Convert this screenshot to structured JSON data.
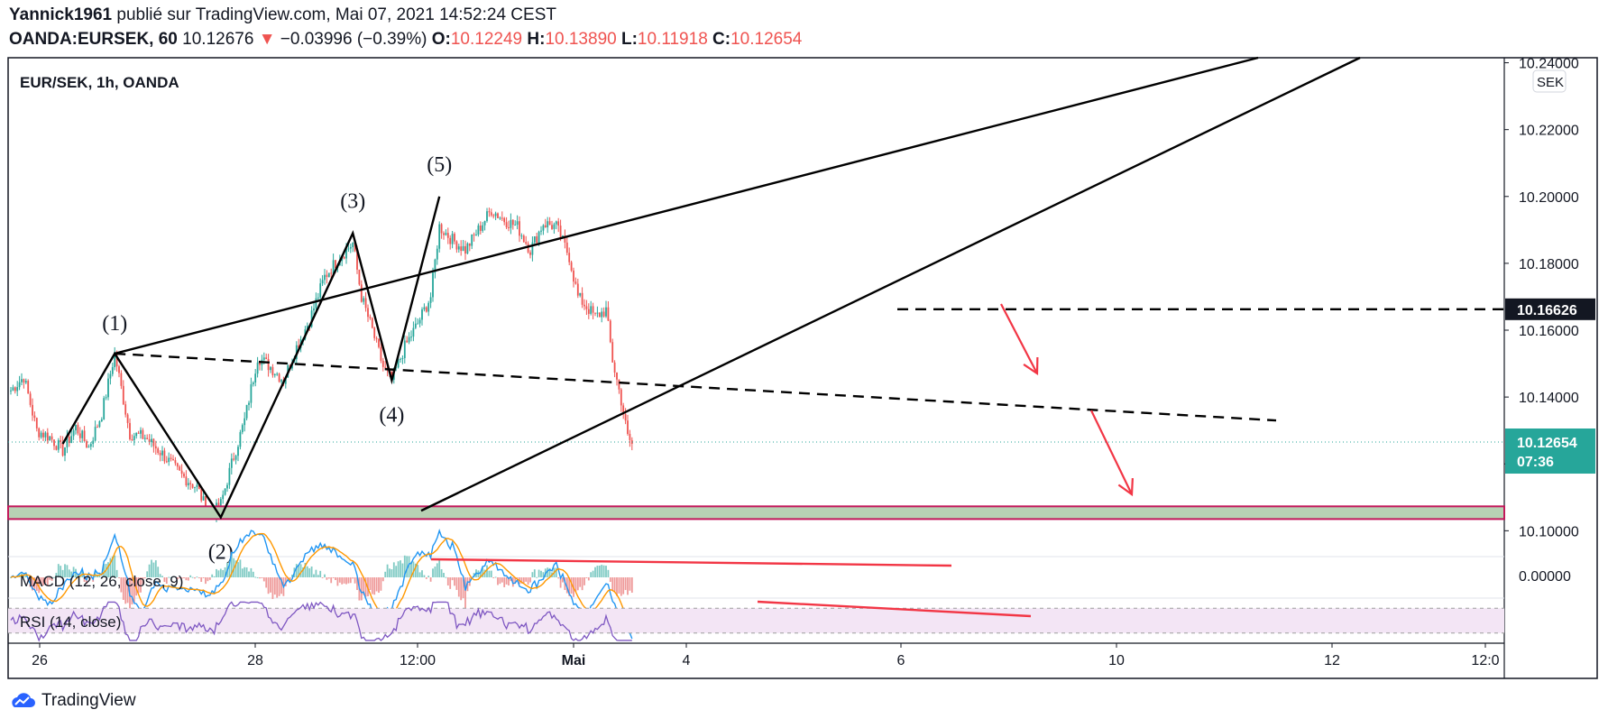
{
  "header": {
    "author": "Yannick1961",
    "published": "publié sur TradingView.com, Mai 07, 2021 14:52:24 CEST",
    "symbol": "OANDA:EURSEK, 60",
    "last": "10.12676",
    "change_arrow": "▼",
    "change": "−0.03996 (−0.39%)",
    "o_label": "O:",
    "o_value": "10.12249",
    "h_label": "H:",
    "h_value": "10.13890",
    "l_label": "L:",
    "l_value": "10.11918",
    "c_label": "C:",
    "c_value": "10.12654"
  },
  "footer": {
    "brand": "TradingView"
  },
  "colors": {
    "up": "#26a69a",
    "down": "#ef5350",
    "macd": "#2196f3",
    "signal": "#ff9800",
    "rsi": "#7e57c2",
    "annotation": "#f23645"
  },
  "chart_data": {
    "type": "candlestick",
    "title": "EUR/SEK, 1h, OANDA",
    "currency": "SEK",
    "ylim": [
      10.092,
      10.2415
    ],
    "y_ticks": [
      "10.24000",
      "10.22000",
      "10.20000",
      "10.18000",
      "10.16000",
      "10.14000",
      "10.12000",
      "10.10000"
    ],
    "x_tick_labels": [
      "26",
      "28",
      "12:00",
      "Mai",
      "4",
      "6",
      "10",
      "12",
      "12:0"
    ],
    "price_labels": [
      {
        "price": 10.16626,
        "text": "10.16626"
      },
      {
        "price": 10.12654,
        "text": "10.12654",
        "countdown": "07:36"
      }
    ],
    "close_path": [
      [
        0,
        10.142
      ],
      [
        6,
        10.146
      ],
      [
        12,
        10.13
      ],
      [
        18,
        10.128
      ],
      [
        24,
        10.124
      ],
      [
        30,
        10.131
      ],
      [
        36,
        10.125
      ],
      [
        42,
        10.135
      ],
      [
        48,
        10.153
      ],
      [
        55,
        10.129
      ],
      [
        62,
        10.128
      ],
      [
        70,
        10.123
      ],
      [
        78,
        10.117
      ],
      [
        86,
        10.113
      ],
      [
        92,
        10.104
      ],
      [
        97,
        10.108
      ],
      [
        102,
        10.12
      ],
      [
        108,
        10.133
      ],
      [
        114,
        10.152
      ],
      [
        120,
        10.149
      ],
      [
        126,
        10.145
      ],
      [
        132,
        10.155
      ],
      [
        138,
        10.163
      ],
      [
        145,
        10.176
      ],
      [
        152,
        10.182
      ],
      [
        158,
        10.186
      ],
      [
        162,
        10.17
      ],
      [
        167,
        10.16
      ],
      [
        172,
        10.149
      ],
      [
        176,
        10.145
      ],
      [
        182,
        10.155
      ],
      [
        188,
        10.162
      ],
      [
        194,
        10.17
      ],
      [
        198,
        10.191
      ],
      [
        204,
        10.187
      ],
      [
        210,
        10.184
      ],
      [
        216,
        10.19
      ],
      [
        222,
        10.196
      ],
      [
        228,
        10.193
      ],
      [
        234,
        10.191
      ],
      [
        240,
        10.184
      ],
      [
        246,
        10.192
      ],
      [
        252,
        10.191
      ],
      [
        258,
        10.182
      ],
      [
        262,
        10.17
      ],
      [
        266,
        10.167
      ],
      [
        270,
        10.164
      ],
      [
        275,
        10.166
      ],
      [
        278,
        10.151
      ],
      [
        282,
        10.139
      ],
      [
        285,
        10.128
      ],
      [
        287,
        10.126
      ]
    ],
    "pattern_points": [
      {
        "label": "(1)",
        "t": 48,
        "price": 10.153
      },
      {
        "label": "(2)",
        "t": 97,
        "price": 10.104
      },
      {
        "label": "(3)",
        "t": 158,
        "price": 10.189
      },
      {
        "label": "(4)",
        "t": 176,
        "price": 10.145
      },
      {
        "label": "(5)",
        "t": 198,
        "price": 10.2
      }
    ],
    "support_zone": {
      "from": 10.1035,
      "to": 10.1073
    },
    "indicators": [
      {
        "name": "MACD (12, 26, close, 9)",
        "ylim": [
          -0.006,
          0.006
        ],
        "zero_label": "0.00000"
      },
      {
        "name": "RSI (14, close)",
        "ylim": [
          15,
          85
        ],
        "levels": [
          70,
          30
        ]
      }
    ]
  }
}
